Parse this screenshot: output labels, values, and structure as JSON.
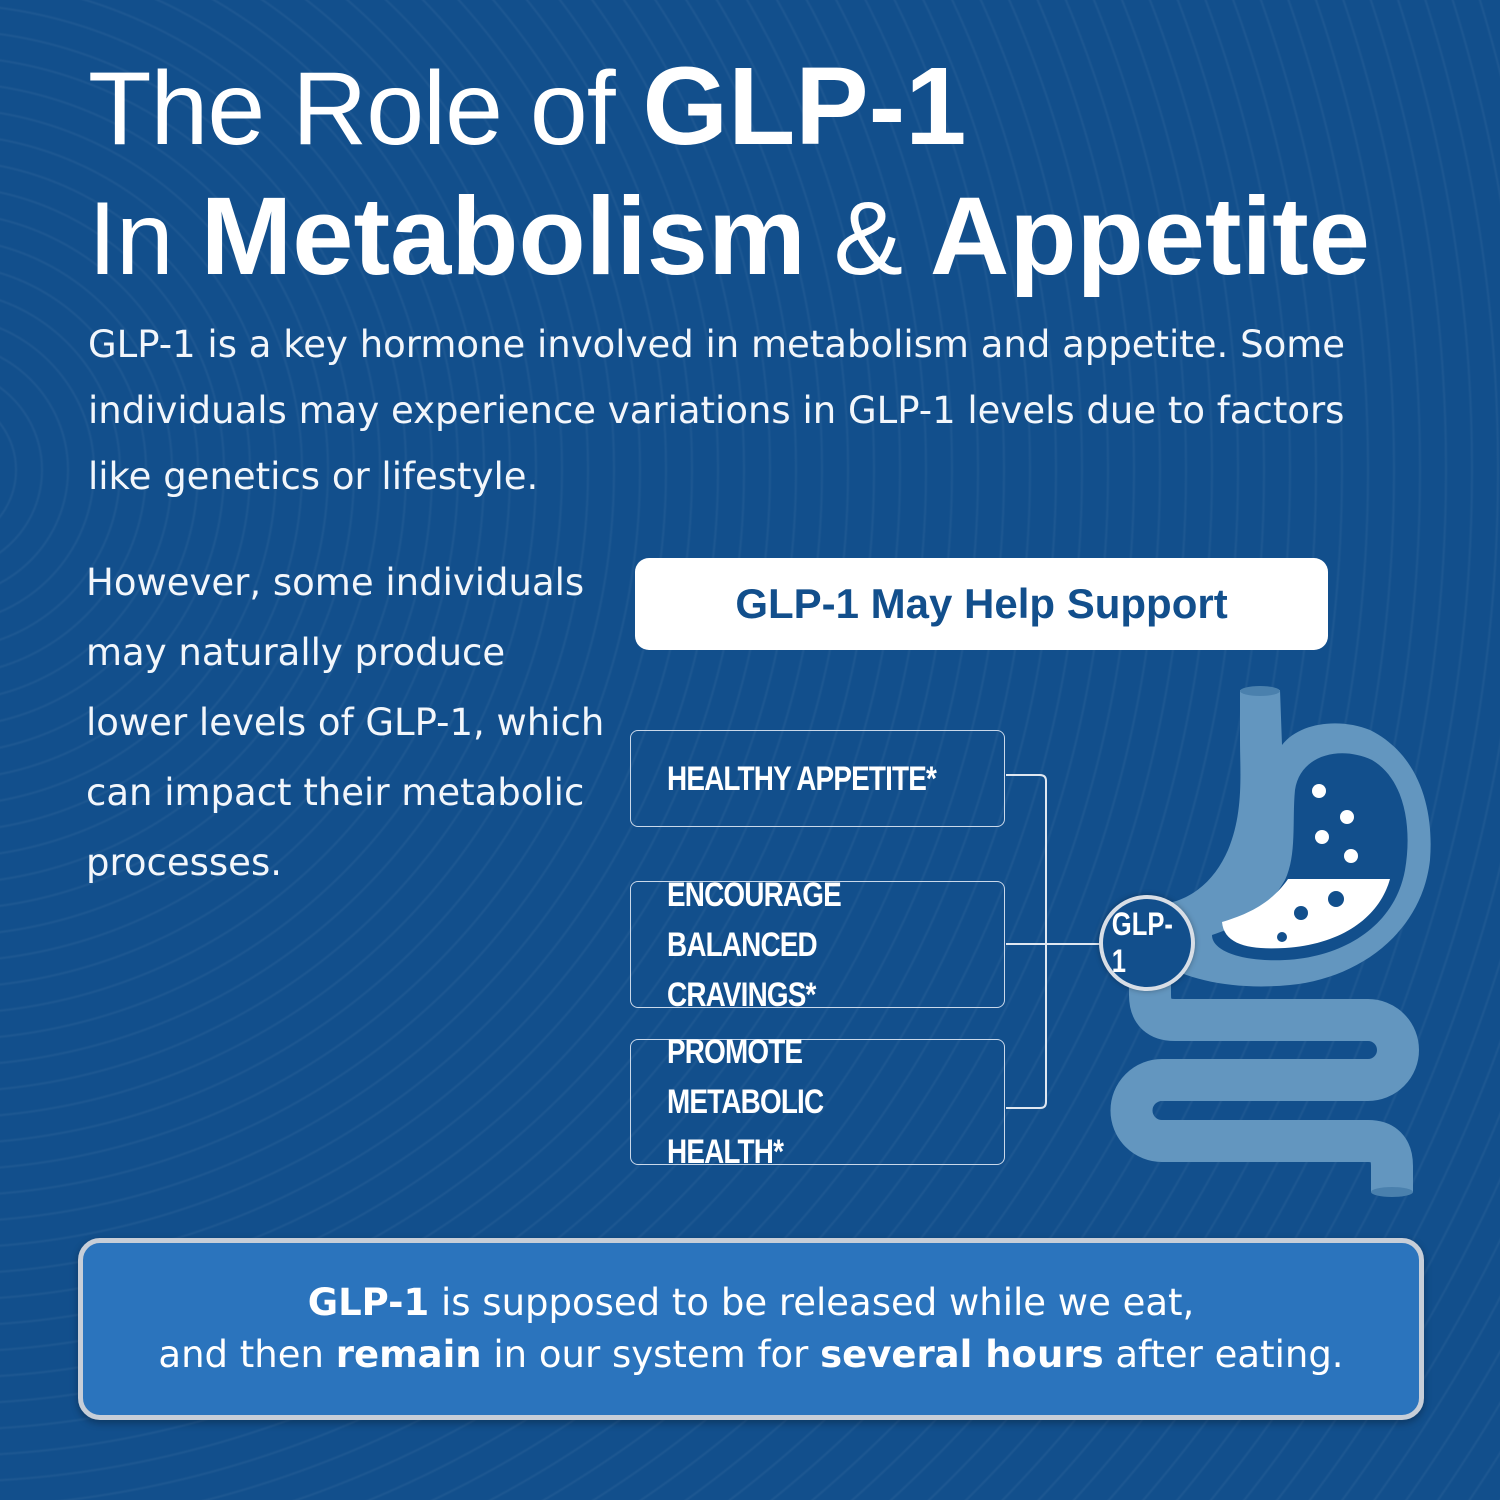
{
  "title": {
    "line1_thin": "The Role of ",
    "line1_bold": "GLP-1",
    "line2_thin_a": "In ",
    "line2_bold_a": "Metabolism",
    "line2_thin_b": " & ",
    "line2_bold_b": "Appetite"
  },
  "intro": "GLP-1 is a key hormone involved in metabolism and appetite. Some individuals may experience variations in GLP-1 levels due to factors like genetics or lifestyle.",
  "side_text": "However, some individuals may naturally produce lower levels of GLP-1, which can impact their metabolic processes.",
  "support_header": "GLP-1 May Help Support",
  "benefits": [
    "HEALTHY APPETITE*",
    "ENCOURAGE BALANCED\nCRAVINGS*",
    "PROMOTE METABOLIC\nHEALTH*"
  ],
  "diagram_badge": "GLP-1",
  "icons": {
    "stomach": "stomach-intestine-icon"
  },
  "footer": {
    "l1_bold": "GLP-1",
    "l1_rest": " is supposed to be released while we eat,",
    "l2_a": "and then ",
    "l2_bold_a": "remain",
    "l2_b": " in our system for ",
    "l2_bold_b": "several hours",
    "l2_c": " after eating."
  },
  "colors": {
    "background": "#124f8c",
    "footer_box": "#2b74bd",
    "organ": "#6396bf"
  }
}
